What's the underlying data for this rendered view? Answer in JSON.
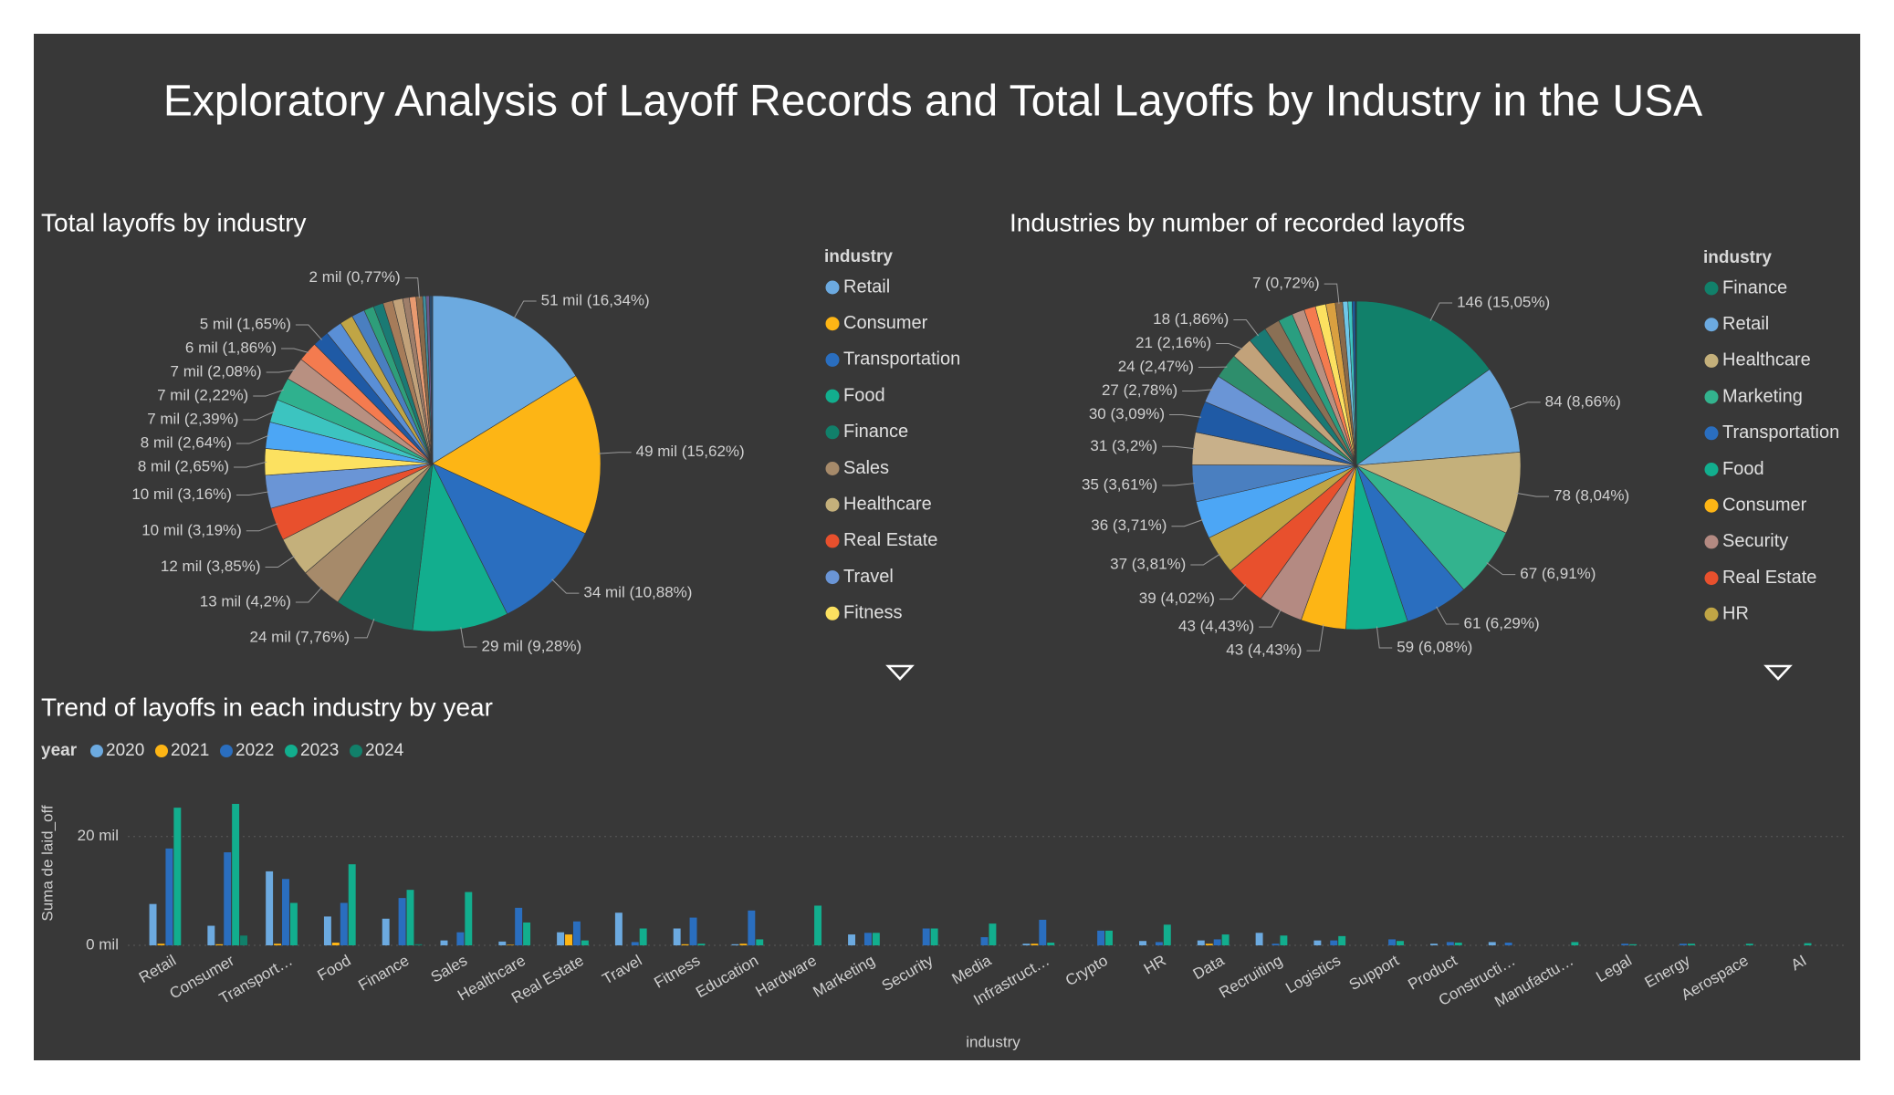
{
  "title": "Exploratory Analysis of Layoff Records and Total Layoffs by Industry in the USA",
  "chart_data": [
    {
      "type": "pie",
      "title": "Total layoffs by industry",
      "legend_title": "industry",
      "categories": [
        "Retail",
        "Consumer",
        "Transportation",
        "Food",
        "Finance",
        "Sales",
        "Healthcare",
        "Real Estate",
        "Travel",
        "Fitness",
        null,
        null,
        null,
        null,
        null,
        null,
        null,
        null,
        null,
        null,
        null,
        null,
        null,
        null,
        null,
        null,
        null,
        null,
        null
      ],
      "values": [
        51,
        49,
        34,
        29,
        24,
        13,
        12,
        10,
        10,
        8,
        8,
        7,
        7,
        7,
        6,
        5,
        5,
        4,
        4,
        3,
        3,
        3,
        3,
        2,
        2,
        2,
        1,
        1,
        1
      ],
      "value_labels": [
        "51 mil (16,34%)",
        "49 mil (15,62%)",
        "34 mil (10,88%)",
        "29 mil (9,28%)",
        "24 mil (7,76%)",
        "13 mil (4,2%)",
        "12 mil (3,85%)",
        "10 mil (3,19%)",
        "10 mil (3,16%)",
        "8 mil (2,65%)",
        "8 mil (2,64%)",
        "7 mil (2,39%)",
        "7 mil (2,22%)",
        "7 mil (2,08%)",
        "6 mil (1,86%)",
        "5 mil (1,65%)",
        null,
        null,
        null,
        null,
        null,
        null,
        null,
        null,
        null,
        "2 mil (0,77%)",
        null,
        null,
        null
      ],
      "colors": [
        "#6CAAE0",
        "#FDB515",
        "#2A6EBF",
        "#12AE8E",
        "#11806A",
        "#A68A6A",
        "#C4B07B",
        "#E8502D",
        "#6A95D6",
        "#FCE160",
        "#4CA6F5",
        "#3CC4C0",
        "#2FB18E",
        "#B89081",
        "#F47B4F",
        "#1F5AA5",
        "#5A8FD6",
        "#C0A545",
        "#4A7FC0",
        "#2E9E7A",
        "#1A7A74",
        "#A67C5A",
        "#C2A27A",
        "#9E7E6A",
        "#E89A70",
        "#8A6A4A",
        "#3E8E9E",
        "#6A5A8A",
        "#2A4A6A"
      ]
    },
    {
      "type": "pie",
      "title": "Industries by number of recorded layoffs",
      "legend_title": "industry",
      "categories": [
        "Finance",
        "Retail",
        "Healthcare",
        "Marketing",
        "Transportation",
        "Food",
        "Consumer",
        "Security",
        "Real Estate",
        "HR",
        null,
        null,
        null,
        null,
        null,
        null,
        null,
        null,
        null,
        null,
        null,
        null,
        null,
        null,
        null,
        null,
        null,
        null,
        null
      ],
      "values": [
        146,
        84,
        78,
        67,
        61,
        59,
        43,
        43,
        39,
        37,
        36,
        35,
        31,
        30,
        27,
        24,
        21,
        18,
        15,
        14,
        12,
        11,
        10,
        9,
        7,
        5,
        4,
        3,
        1
      ],
      "value_labels": [
        "146 (15,05%)",
        "84 (8,66%)",
        "78 (8,04%)",
        "67 (6,91%)",
        "61 (6,29%)",
        "59 (6,08%)",
        "43 (4,43%)",
        "43 (4,43%)",
        "39 (4,02%)",
        "37 (3,81%)",
        "36 (3,71%)",
        "35 (3,61%)",
        "31 (3,2%)",
        "30 (3,09%)",
        "27 (2,78%)",
        "24 (2,47%)",
        "21 (2,16%)",
        "18 (1,86%)",
        null,
        null,
        null,
        null,
        null,
        null,
        "7 (0,72%)",
        null,
        null,
        null,
        null
      ],
      "colors": [
        "#11806A",
        "#6CAAE0",
        "#C4B07B",
        "#33B38E",
        "#2A6EBF",
        "#12AE8E",
        "#FDB515",
        "#B48A82",
        "#E8502D",
        "#C0A545",
        "#4CA6F5",
        "#4A7FC0",
        "#C8B08A",
        "#1F5AA5",
        "#6A95D6",
        "#2E8E6C",
        "#C2A27A",
        "#1A7A74",
        "#8A7055",
        "#2A9E80",
        "#B89081",
        "#F47B4F",
        "#FCE160",
        "#D9A040",
        "#8A6A4A",
        "#6FC7E8",
        "#3CC4C0",
        "#1A5A9A",
        "#103050"
      ]
    },
    {
      "type": "bar",
      "title": "Trend of layoffs in each industry by year",
      "legend_title": "year",
      "xlabel": "industry",
      "ylabel": "Suma de laid_off",
      "categories": [
        "Retail",
        "Consumer",
        "Transport…",
        "Food",
        "Finance",
        "Sales",
        "Healthcare",
        "Real Estate",
        "Travel",
        "Fitness",
        "Education",
        "Hardware",
        "Marketing",
        "Security",
        "Media",
        "Infrastruct…",
        "Crypto",
        "HR",
        "Data",
        "Recruiting",
        "Logistics",
        "Support",
        "Product",
        "Constructi…",
        "Manufactu…",
        "Legal",
        "Energy",
        "Aerospace",
        "AI"
      ],
      "ylim": [
        0,
        27
      ],
      "yticks": [
        {
          "value": 0,
          "label": "0 mil"
        },
        {
          "value": 20,
          "label": "20 mil"
        }
      ],
      "grid": true,
      "series": [
        {
          "name": "2020",
          "color": "#6CAAE0",
          "values": [
            7.6,
            3.6,
            13.6,
            5.3,
            4.9,
            0.9,
            0.7,
            2.4,
            6.0,
            3.1,
            0.2,
            0,
            2.0,
            0,
            0,
            0.3,
            0,
            0.8,
            0.9,
            2.3,
            0.9,
            0,
            0.3,
            0.6,
            0,
            0,
            0,
            0,
            0
          ]
        },
        {
          "name": "2021",
          "color": "#FDB515",
          "values": [
            0.3,
            0.2,
            0.3,
            0.5,
            0,
            0,
            0.1,
            2.0,
            0,
            0.2,
            0.3,
            0,
            0,
            0,
            0,
            0.3,
            0,
            0,
            0.3,
            0,
            0,
            0,
            0,
            0,
            0,
            0,
            0,
            0,
            0
          ]
        },
        {
          "name": "2022",
          "color": "#2A6EBF",
          "values": [
            17.8,
            17.1,
            12.2,
            7.8,
            8.7,
            2.4,
            6.9,
            4.4,
            0.6,
            5.1,
            6.4,
            0,
            2.3,
            3.1,
            1.5,
            4.7,
            2.7,
            0.6,
            1.1,
            0.3,
            0.9,
            1.1,
            0.6,
            0.5,
            0,
            0.3,
            0.3,
            0,
            0
          ]
        },
        {
          "name": "2023",
          "color": "#12AE8E",
          "values": [
            25.3,
            26.0,
            7.8,
            14.9,
            10.2,
            9.8,
            4.2,
            0.9,
            3.1,
            0.3,
            1.1,
            7.3,
            2.3,
            3.1,
            4.0,
            0.5,
            2.7,
            3.8,
            2.0,
            1.8,
            1.7,
            0.8,
            0.5,
            0,
            0.6,
            0.2,
            0.3,
            0.3,
            0.4
          ]
        },
        {
          "name": "2024",
          "color": "#11806A",
          "values": [
            0,
            1.8,
            0,
            0,
            0.2,
            0,
            0,
            0,
            0,
            0,
            0,
            0,
            0,
            0,
            0,
            0,
            0,
            0,
            0,
            0,
            0,
            0,
            0,
            0,
            0,
            0,
            0,
            0,
            0
          ]
        }
      ]
    }
  ]
}
